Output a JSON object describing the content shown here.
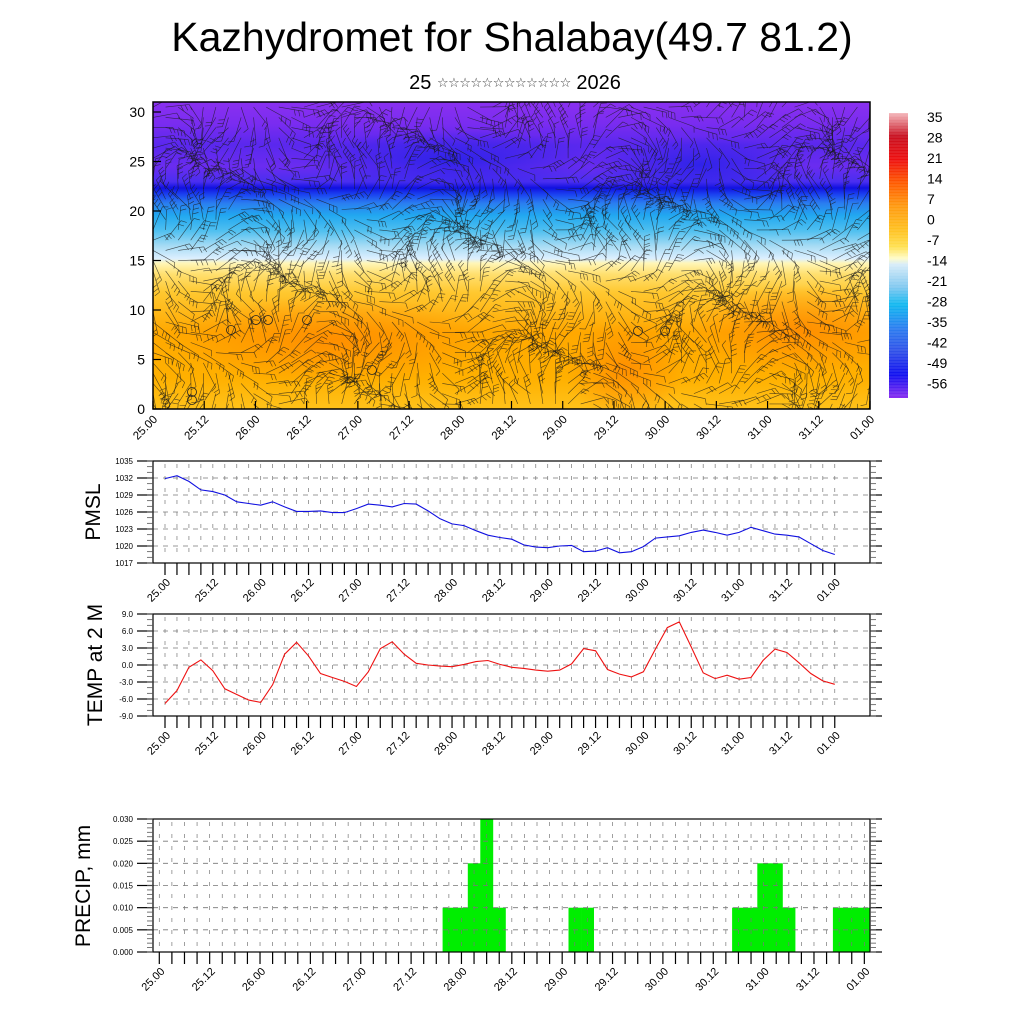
{
  "title": "Kazhydromet for Shalabay(49.7 81.2)",
  "subtitle": {
    "day": "25",
    "month_glyphs": "☆☆☆☆☆☆☆☆☆☆☆☆",
    "year": "2026"
  },
  "colors": {
    "pmsl_line": "#1010e0",
    "temp_line": "#ee1111",
    "precip_bar": "#00ee00",
    "axis": "#000000",
    "grid": "#777777"
  },
  "time_labels": [
    "25.00",
    "25.12",
    "26.00",
    "26.12",
    "27.00",
    "27.12",
    "28.00",
    "28.12",
    "29.00",
    "29.12",
    "30.00",
    "30.12",
    "31.00",
    "31.12",
    "01.00"
  ],
  "chart_data": [
    {
      "type": "heatmap",
      "name": "cross-section",
      "xlabel": "",
      "ylabel": "",
      "yticks": [
        "0",
        "5",
        "10",
        "15",
        "20",
        "25",
        "30"
      ],
      "ylim": [
        0,
        30
      ],
      "x_tick_labels": [
        "25.00",
        "25.12",
        "26.00",
        "26.12",
        "27.00",
        "27.12",
        "28.00",
        "28.12",
        "29.00",
        "29.12",
        "30.00",
        "30.12",
        "31.00",
        "31.12",
        "01.00"
      ],
      "colorbar": {
        "labels": [
          "35",
          "28",
          "21",
          "14",
          "7",
          "0",
          "-7",
          "-14",
          "-21",
          "-28",
          "-35",
          "-42",
          "-49",
          "-56"
        ],
        "stops": [
          {
            "value": 38,
            "color": "#f4b8bc"
          },
          {
            "value": 30,
            "color": "#c81020"
          },
          {
            "value": 22,
            "color": "#ee1010"
          },
          {
            "value": 14,
            "color": "#ff5a00"
          },
          {
            "value": 6,
            "color": "#ff9a10"
          },
          {
            "value": -2,
            "color": "#ffc020"
          },
          {
            "value": -8,
            "color": "#ffe050"
          },
          {
            "value": -12,
            "color": "#fffcc8"
          },
          {
            "value": -14,
            "color": "#d8ecf8"
          },
          {
            "value": -22,
            "color": "#80c8f0"
          },
          {
            "value": -28,
            "color": "#10b8f0"
          },
          {
            "value": -36,
            "color": "#2c7ef0"
          },
          {
            "value": -44,
            "color": "#3050e8"
          },
          {
            "value": -52,
            "color": "#1010f0"
          },
          {
            "value": -60,
            "color": "#8a2ef0"
          }
        ]
      },
      "legend": "right",
      "overlay": "wind barbs"
    },
    {
      "type": "line",
      "name": "pmsl",
      "ylabel": "PMSL",
      "yticks": [
        "1035",
        "1032",
        "1029",
        "1026",
        "1023",
        "1020",
        "1017"
      ],
      "ylim": [
        1017,
        1035
      ],
      "x_tick_labels": [
        "25.00",
        "25.12",
        "26.00",
        "26.12",
        "27.00",
        "27.12",
        "28.00",
        "28.12",
        "29.00",
        "29.12",
        "30.00",
        "30.12",
        "31.00",
        "31.12",
        "01.00"
      ],
      "grid": true,
      "step_hours": 3,
      "values": [
        1031.9,
        1032.4,
        1031.4,
        1029.9,
        1029.6,
        1029.0,
        1027.8,
        1027.5,
        1027.2,
        1027.8,
        1026.9,
        1026.1,
        1026.1,
        1026.2,
        1025.9,
        1025.9,
        1026.6,
        1027.4,
        1027.2,
        1026.9,
        1027.5,
        1027.4,
        1026.2,
        1024.8,
        1023.9,
        1023.6,
        1022.7,
        1021.9,
        1021.5,
        1021.2,
        1020.2,
        1019.8,
        1019.7,
        1020.0,
        1020.1,
        1019.0,
        1019.1,
        1019.7,
        1018.8,
        1019.0,
        1019.9,
        1021.4,
        1021.6,
        1021.8,
        1022.4,
        1022.8,
        1022.4,
        1021.9,
        1022.4,
        1023.3,
        1022.7,
        1022.1,
        1021.9,
        1021.6,
        1020.4,
        1019.2,
        1018.5
      ]
    },
    {
      "type": "line",
      "name": "temp",
      "ylabel": "TEMP at 2 M",
      "yticks": [
        "9.0",
        "6.0",
        "3.0",
        "0.0",
        "-3.0",
        "-6.0",
        "-9.0"
      ],
      "ylim": [
        -9,
        9
      ],
      "x_tick_labels": [
        "25.00",
        "25.12",
        "26.00",
        "26.12",
        "27.00",
        "27.12",
        "28.00",
        "28.12",
        "29.00",
        "29.12",
        "30.00",
        "30.12",
        "31.00",
        "31.12",
        "01.00"
      ],
      "grid": true,
      "step_hours": 3,
      "values": [
        -6.8,
        -4.5,
        -0.4,
        0.9,
        -1.0,
        -4.2,
        -5.2,
        -6.2,
        -6.6,
        -3.5,
        1.9,
        4.0,
        1.6,
        -1.5,
        -2.2,
        -2.9,
        -3.8,
        -1.2,
        2.9,
        4.1,
        1.9,
        0.3,
        0.0,
        -0.2,
        -0.3,
        0.1,
        0.6,
        0.8,
        0.1,
        -0.4,
        -0.6,
        -0.9,
        -1.1,
        -0.9,
        0.2,
        2.9,
        2.5,
        -0.8,
        -1.6,
        -2.1,
        -1.2,
        2.8,
        6.6,
        7.6,
        3.2,
        -1.4,
        -2.4,
        -1.8,
        -2.5,
        -2.2,
        0.8,
        2.8,
        2.2,
        0.4,
        -1.5,
        -2.8,
        -3.4
      ]
    },
    {
      "type": "bar",
      "name": "precip",
      "ylabel": "PRECIP, mm",
      "yticks": [
        "0.030",
        "0.025",
        "0.020",
        "0.015",
        "0.010",
        "0.005",
        "0.000"
      ],
      "ylim": [
        0,
        0.03
      ],
      "x_tick_labels": [
        "25.00",
        "25.12",
        "26.00",
        "26.12",
        "27.00",
        "27.12",
        "28.00",
        "28.12",
        "29.00",
        "29.12",
        "30.00",
        "30.12",
        "31.00",
        "31.12",
        "01.00"
      ],
      "grid": true,
      "step_hours": 3,
      "values": [
        0,
        0,
        0,
        0,
        0,
        0,
        0,
        0,
        0,
        0,
        0,
        0,
        0,
        0,
        0,
        0,
        0,
        0,
        0,
        0,
        0,
        0,
        0,
        0.01,
        0.01,
        0.02,
        0.03,
        0.01,
        0,
        0,
        0,
        0,
        0,
        0.01,
        0.01,
        0,
        0,
        0,
        0,
        0,
        0,
        0,
        0,
        0,
        0,
        0,
        0.01,
        0.01,
        0.02,
        0.02,
        0.01,
        0,
        0,
        0,
        0.01,
        0.01,
        0.01
      ]
    }
  ]
}
